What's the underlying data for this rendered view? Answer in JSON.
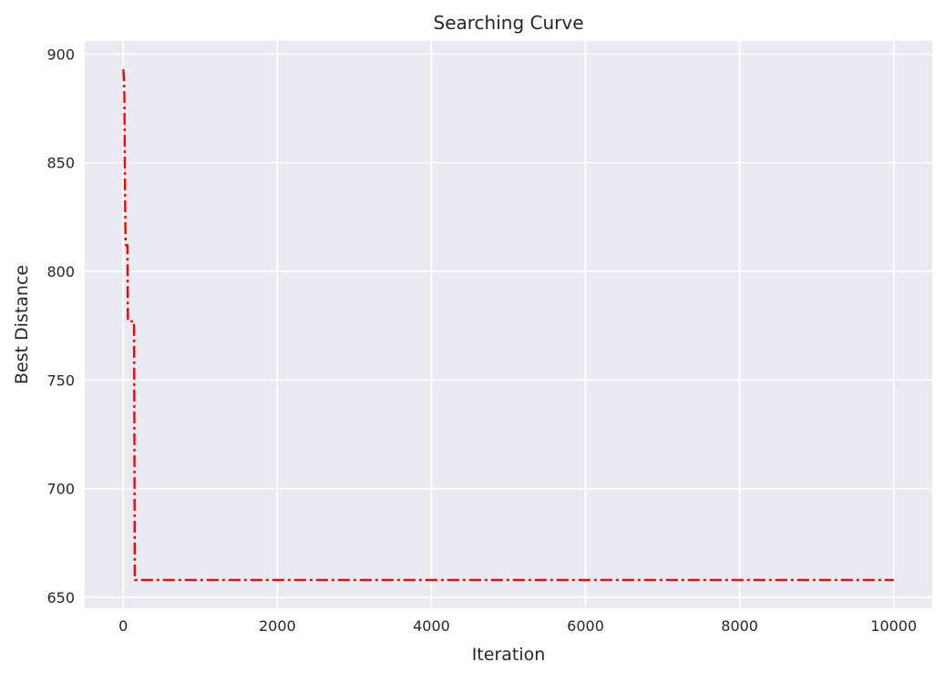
{
  "chart_data": {
    "type": "line",
    "title": "Searching Curve",
    "xlabel": "Iteration",
    "ylabel": "Best Distance",
    "xlim": [
      -500,
      10500
    ],
    "ylim": [
      645,
      906
    ],
    "xticks": [
      0,
      2000,
      4000,
      6000,
      8000,
      10000
    ],
    "yticks": [
      650,
      700,
      750,
      800,
      850,
      900
    ],
    "grid": true,
    "background": "#eaeaf2",
    "grid_color": "#ffffff",
    "series": [
      {
        "line_style": "dash-dot",
        "color": "#ff0000",
        "x": [
          0,
          5,
          10,
          15,
          20,
          25,
          30,
          35,
          40,
          45,
          50,
          55,
          60,
          65,
          70,
          75,
          80,
          85,
          90,
          95,
          100,
          105,
          110,
          115,
          120,
          125,
          130,
          135,
          140,
          145,
          150,
          155,
          160,
          170,
          200,
          1000,
          2000,
          4000,
          6000,
          8000,
          10000
        ],
        "y": [
          893,
          891,
          888,
          880,
          850,
          828,
          813,
          812,
          812,
          812,
          812,
          812,
          778,
          778,
          777,
          777,
          777,
          777,
          777,
          777,
          777,
          777,
          777,
          777,
          777,
          777,
          777,
          777,
          777,
          718,
          658,
          658,
          658,
          658,
          658,
          658,
          658,
          658,
          658,
          658,
          658
        ]
      }
    ]
  }
}
